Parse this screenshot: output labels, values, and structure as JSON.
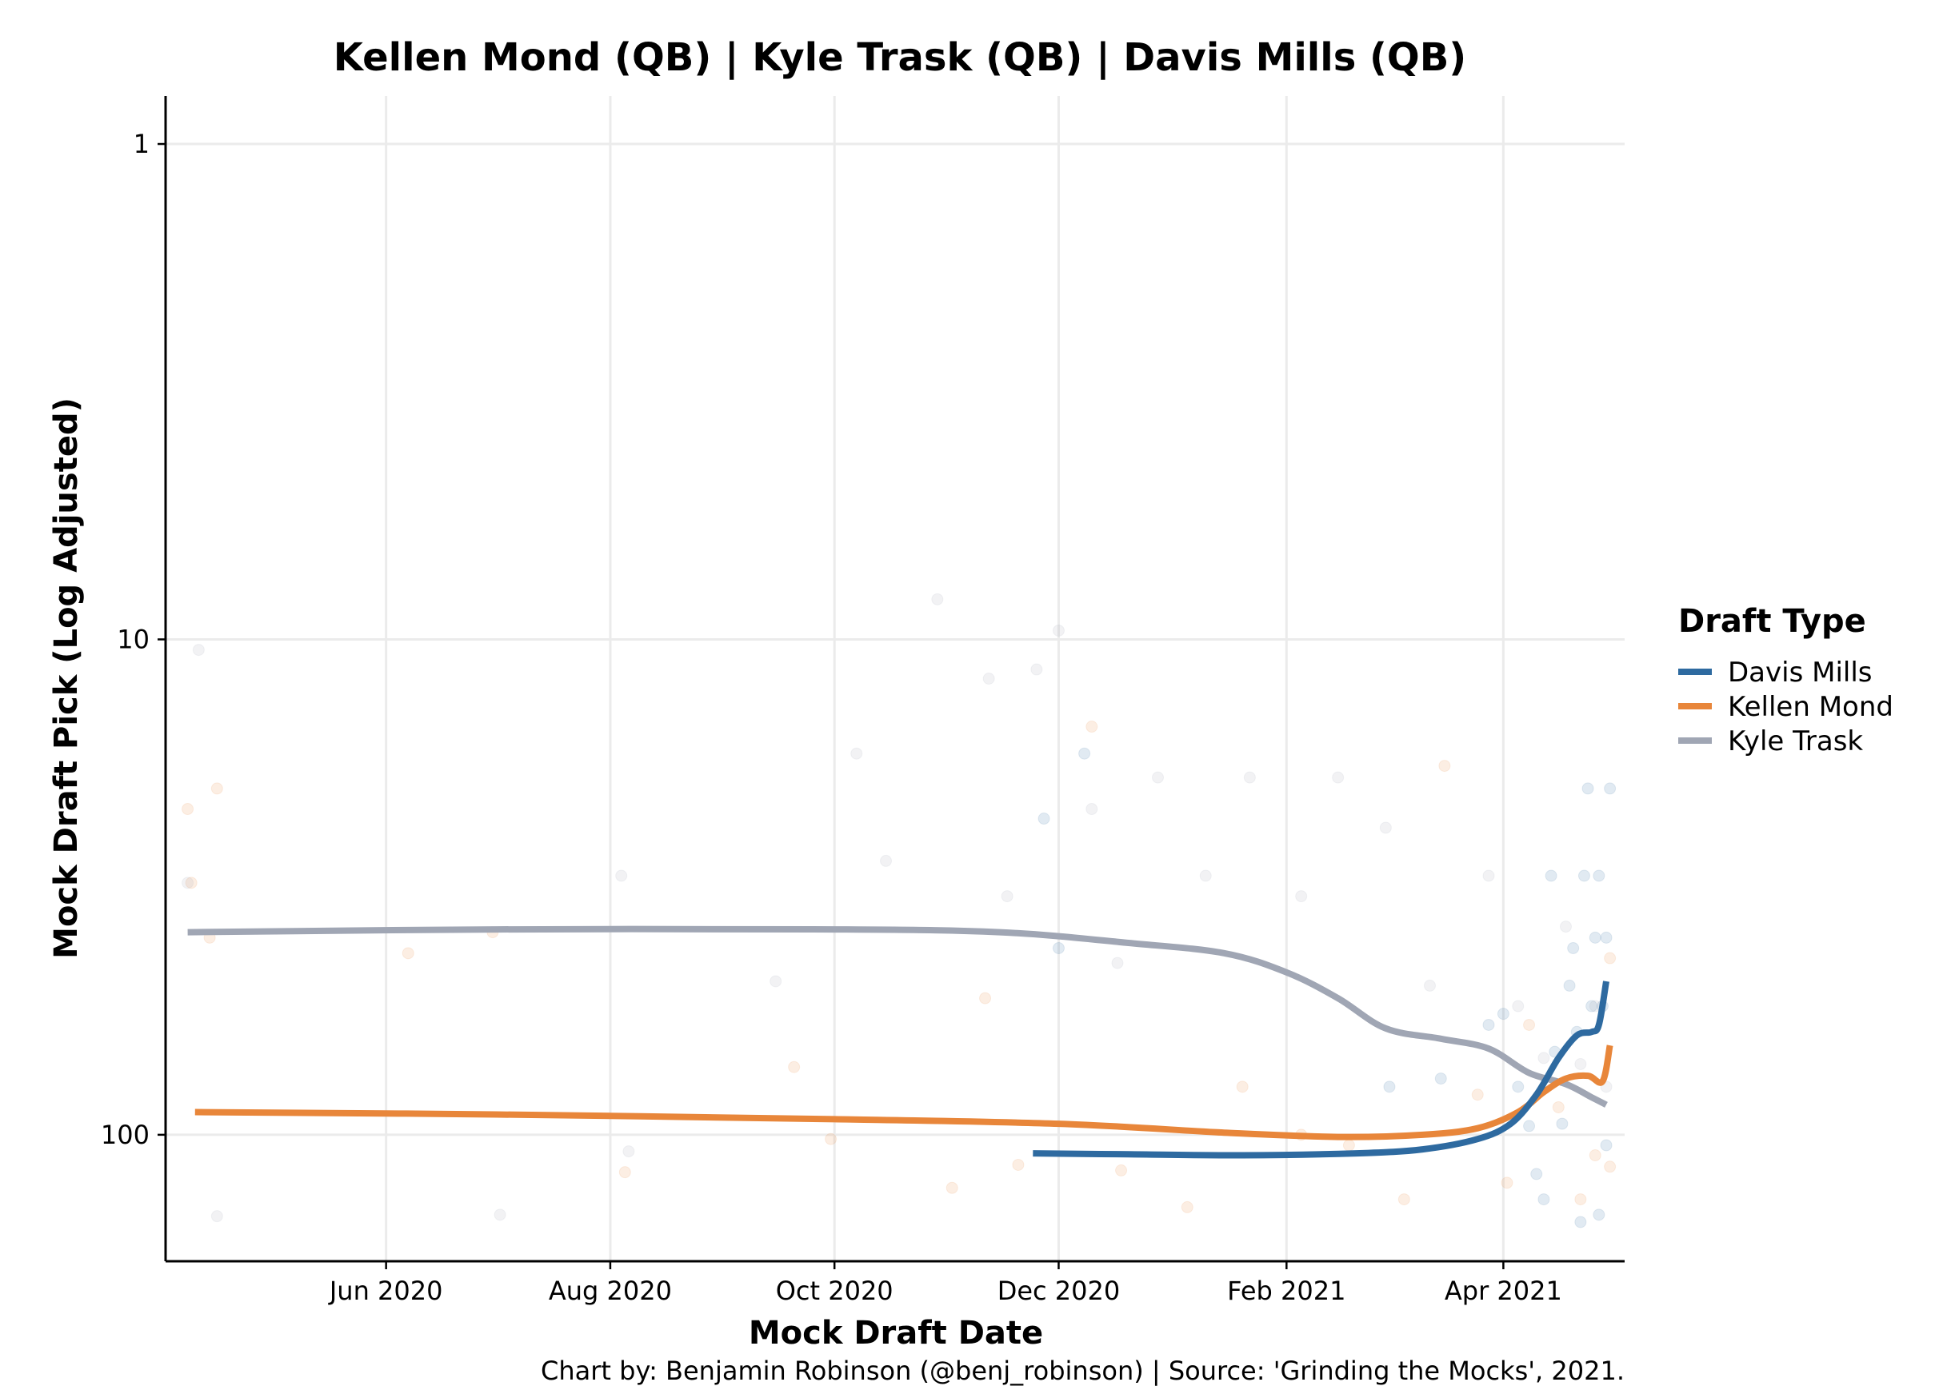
{
  "chart_data": {
    "type": "line",
    "title": "Kellen Mond (QB) | Kyle Trask (QB) | Davis Mills (QB)",
    "xlabel": "Mock Draft Date",
    "ylabel": "Mock Draft Pick (Log Adjusted)",
    "caption": "Chart by: Benjamin Robinson (@benj_robinson) | Source: 'Grinding the Mocks', 2021.",
    "y_scale": "log",
    "y_reversed": true,
    "ylim": [
      0.8,
      180
    ],
    "xlim": [
      "2020-04-02",
      "2021-05-04"
    ],
    "x_ticks": [
      {
        "date": "2020-06-01",
        "label": "Jun 2020"
      },
      {
        "date": "2020-08-01",
        "label": "Aug 2020"
      },
      {
        "date": "2020-10-01",
        "label": "Oct 2020"
      },
      {
        "date": "2020-12-01",
        "label": "Dec 2020"
      },
      {
        "date": "2021-02-01",
        "label": "Feb 2021"
      },
      {
        "date": "2021-04-01",
        "label": "Apr 2021"
      }
    ],
    "y_ticks": [
      {
        "value": 1,
        "label": "1"
      },
      {
        "value": 10,
        "label": "10"
      },
      {
        "value": 100,
        "label": "100"
      }
    ],
    "grid": true,
    "legend": {
      "title": "Draft Type",
      "position": "right"
    },
    "series": [
      {
        "name": "Davis Mills",
        "color": "#2e6aa0",
        "smooth": [
          {
            "x": "2020-11-24",
            "y": 109
          },
          {
            "x": "2020-12-20",
            "y": 109.5
          },
          {
            "x": "2021-01-20",
            "y": 110
          },
          {
            "x": "2021-02-20",
            "y": 109
          },
          {
            "x": "2021-03-10",
            "y": 107
          },
          {
            "x": "2021-03-25",
            "y": 102
          },
          {
            "x": "2021-04-03",
            "y": 95
          },
          {
            "x": "2021-04-10",
            "y": 83
          },
          {
            "x": "2021-04-16",
            "y": 70
          },
          {
            "x": "2021-04-21",
            "y": 63
          },
          {
            "x": "2021-04-25",
            "y": 62
          },
          {
            "x": "2021-04-27",
            "y": 60
          },
          {
            "x": "2021-04-29",
            "y": 49
          }
        ],
        "points": [
          {
            "x": "2020-12-01",
            "y": 42
          },
          {
            "x": "2020-12-08",
            "y": 17
          },
          {
            "x": "2020-11-27",
            "y": 23
          },
          {
            "x": "2021-03-01",
            "y": 80
          },
          {
            "x": "2021-03-15",
            "y": 77
          },
          {
            "x": "2021-03-28",
            "y": 60
          },
          {
            "x": "2021-04-01",
            "y": 57
          },
          {
            "x": "2021-04-05",
            "y": 80
          },
          {
            "x": "2021-04-08",
            "y": 96
          },
          {
            "x": "2021-04-10",
            "y": 120
          },
          {
            "x": "2021-04-12",
            "y": 135
          },
          {
            "x": "2021-04-14",
            "y": 30
          },
          {
            "x": "2021-04-15",
            "y": 68
          },
          {
            "x": "2021-04-17",
            "y": 95
          },
          {
            "x": "2021-04-19",
            "y": 50
          },
          {
            "x": "2021-04-20",
            "y": 42
          },
          {
            "x": "2021-04-21",
            "y": 62
          },
          {
            "x": "2021-04-22",
            "y": 150
          },
          {
            "x": "2021-04-23",
            "y": 30
          },
          {
            "x": "2021-04-24",
            "y": 20
          },
          {
            "x": "2021-04-25",
            "y": 55
          },
          {
            "x": "2021-04-26",
            "y": 40
          },
          {
            "x": "2021-04-27",
            "y": 30
          },
          {
            "x": "2021-04-28",
            "y": 55
          },
          {
            "x": "2021-04-29",
            "y": 40
          },
          {
            "x": "2021-04-30",
            "y": 20
          },
          {
            "x": "2021-04-29",
            "y": 105
          },
          {
            "x": "2021-04-27",
            "y": 145
          }
        ]
      },
      {
        "name": "Kellen Mond",
        "color": "#e8863a",
        "smooth": [
          {
            "x": "2020-04-10",
            "y": 90
          },
          {
            "x": "2020-07-01",
            "y": 91
          },
          {
            "x": "2020-10-01",
            "y": 93
          },
          {
            "x": "2020-12-01",
            "y": 95
          },
          {
            "x": "2021-01-15",
            "y": 99
          },
          {
            "x": "2021-02-15",
            "y": 101
          },
          {
            "x": "2021-03-10",
            "y": 100
          },
          {
            "x": "2021-03-25",
            "y": 97
          },
          {
            "x": "2021-04-05",
            "y": 90
          },
          {
            "x": "2021-04-12",
            "y": 82
          },
          {
            "x": "2021-04-18",
            "y": 77
          },
          {
            "x": "2021-04-24",
            "y": 76
          },
          {
            "x": "2021-04-28",
            "y": 78
          },
          {
            "x": "2021-04-30",
            "y": 66
          }
        ],
        "points": [
          {
            "x": "2020-04-08",
            "y": 22
          },
          {
            "x": "2020-04-09",
            "y": 31
          },
          {
            "x": "2020-04-14",
            "y": 40
          },
          {
            "x": "2020-04-16",
            "y": 20
          },
          {
            "x": "2020-06-07",
            "y": 43
          },
          {
            "x": "2020-06-30",
            "y": 39
          },
          {
            "x": "2020-08-05",
            "y": 119
          },
          {
            "x": "2020-09-20",
            "y": 73
          },
          {
            "x": "2020-09-30",
            "y": 102
          },
          {
            "x": "2020-11-02",
            "y": 128
          },
          {
            "x": "2020-11-11",
            "y": 53
          },
          {
            "x": "2020-11-20",
            "y": 115
          },
          {
            "x": "2020-12-10",
            "y": 15
          },
          {
            "x": "2020-12-18",
            "y": 118
          },
          {
            "x": "2021-01-05",
            "y": 140
          },
          {
            "x": "2021-01-20",
            "y": 80
          },
          {
            "x": "2021-02-05",
            "y": 100
          },
          {
            "x": "2021-02-18",
            "y": 105
          },
          {
            "x": "2021-03-05",
            "y": 135
          },
          {
            "x": "2021-03-16",
            "y": 18
          },
          {
            "x": "2021-03-25",
            "y": 83
          },
          {
            "x": "2021-04-02",
            "y": 125
          },
          {
            "x": "2021-04-08",
            "y": 60
          },
          {
            "x": "2021-04-16",
            "y": 88
          },
          {
            "x": "2021-04-22",
            "y": 135
          },
          {
            "x": "2021-04-26",
            "y": 110
          },
          {
            "x": "2021-04-30",
            "y": 44
          },
          {
            "x": "2021-04-30",
            "y": 116
          }
        ]
      },
      {
        "name": "Kyle Trask",
        "color": "#a0a6b4",
        "smooth": [
          {
            "x": "2020-04-08",
            "y": 39
          },
          {
            "x": "2020-07-01",
            "y": 38.5
          },
          {
            "x": "2020-10-01",
            "y": 38.5
          },
          {
            "x": "2020-11-15",
            "y": 39
          },
          {
            "x": "2020-12-20",
            "y": 41
          },
          {
            "x": "2021-01-15",
            "y": 43
          },
          {
            "x": "2021-02-01",
            "y": 47
          },
          {
            "x": "2021-02-15",
            "y": 53
          },
          {
            "x": "2021-02-28",
            "y": 61
          },
          {
            "x": "2021-03-15",
            "y": 64
          },
          {
            "x": "2021-03-28",
            "y": 67
          },
          {
            "x": "2021-04-08",
            "y": 75
          },
          {
            "x": "2021-04-18",
            "y": 79
          },
          {
            "x": "2021-04-25",
            "y": 84
          },
          {
            "x": "2021-04-29",
            "y": 87
          }
        ],
        "points": [
          {
            "x": "2020-04-11",
            "y": 10.5
          },
          {
            "x": "2020-04-08",
            "y": 31
          },
          {
            "x": "2020-04-16",
            "y": 146
          },
          {
            "x": "2020-07-02",
            "y": 145
          },
          {
            "x": "2020-08-04",
            "y": 30
          },
          {
            "x": "2020-08-06",
            "y": 108
          },
          {
            "x": "2020-09-15",
            "y": 49
          },
          {
            "x": "2020-10-07",
            "y": 17
          },
          {
            "x": "2020-10-15",
            "y": 28
          },
          {
            "x": "2020-10-29",
            "y": 8.3
          },
          {
            "x": "2020-11-12",
            "y": 12
          },
          {
            "x": "2020-11-17",
            "y": 33
          },
          {
            "x": "2020-11-25",
            "y": 11.5
          },
          {
            "x": "2020-12-01",
            "y": 9.6
          },
          {
            "x": "2020-12-10",
            "y": 22
          },
          {
            "x": "2020-12-17",
            "y": 45
          },
          {
            "x": "2020-12-28",
            "y": 19
          },
          {
            "x": "2021-01-10",
            "y": 30
          },
          {
            "x": "2021-01-22",
            "y": 19
          },
          {
            "x": "2021-02-05",
            "y": 33
          },
          {
            "x": "2021-02-15",
            "y": 19
          },
          {
            "x": "2021-02-28",
            "y": 24
          },
          {
            "x": "2021-03-12",
            "y": 50
          },
          {
            "x": "2021-03-28",
            "y": 30
          },
          {
            "x": "2021-04-05",
            "y": 55
          },
          {
            "x": "2021-04-12",
            "y": 70
          },
          {
            "x": "2021-04-18",
            "y": 38
          },
          {
            "x": "2021-04-22",
            "y": 72
          },
          {
            "x": "2021-04-26",
            "y": 55
          },
          {
            "x": "2021-04-29",
            "y": 80
          }
        ]
      }
    ]
  }
}
